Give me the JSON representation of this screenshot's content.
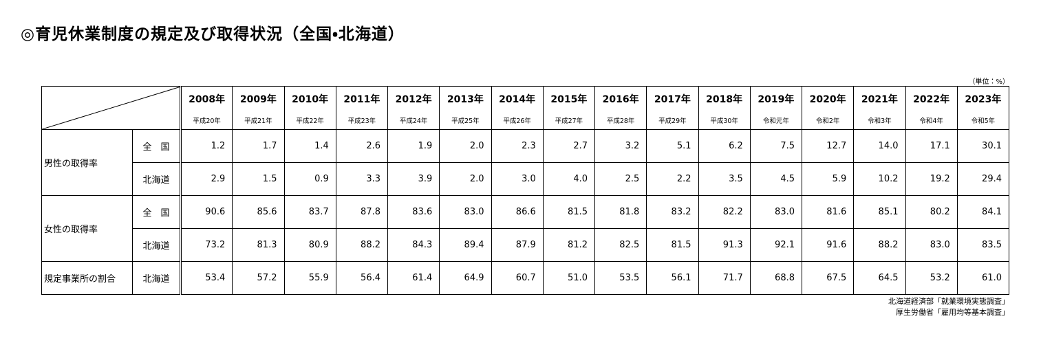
{
  "title": "◎育児休業制度の規定及び取得状況（全国・北海道）",
  "unit": "（単位：%）",
  "table": {
    "years": [
      {
        "year": "2008年",
        "era": "平成20年"
      },
      {
        "year": "2009年",
        "era": "平成21年"
      },
      {
        "year": "2010年",
        "era": "平成22年"
      },
      {
        "year": "2011年",
        "era": "平成23年"
      },
      {
        "year": "2012年",
        "era": "平成24年"
      },
      {
        "year": "2013年",
        "era": "平成25年"
      },
      {
        "year": "2014年",
        "era": "平成26年"
      },
      {
        "year": "2015年",
        "era": "平成27年"
      },
      {
        "year": "2016年",
        "era": "平成28年"
      },
      {
        "year": "2017年",
        "era": "平成29年"
      },
      {
        "year": "2018年",
        "era": "平成30年"
      },
      {
        "year": "2019年",
        "era": "令和元年"
      },
      {
        "year": "2020年",
        "era": "令和2年"
      },
      {
        "year": "2021年",
        "era": "令和3年"
      },
      {
        "year": "2022年",
        "era": "令和4年"
      },
      {
        "year": "2023年",
        "era": "令和5年"
      }
    ],
    "groups": [
      {
        "label": "男性の取得率",
        "rows": [
          {
            "region": "全　国",
            "values": [
              "1.2",
              "1.7",
              "1.4",
              "2.6",
              "1.9",
              "2.0",
              "2.3",
              "2.7",
              "3.2",
              "5.1",
              "6.2",
              "7.5",
              "12.7",
              "14.0",
              "17.1",
              "30.1"
            ]
          },
          {
            "region": "北海道",
            "values": [
              "2.9",
              "1.5",
              "0.9",
              "3.3",
              "3.9",
              "2.0",
              "3.0",
              "4.0",
              "2.5",
              "2.2",
              "3.5",
              "4.5",
              "5.9",
              "10.2",
              "19.2",
              "29.4"
            ]
          }
        ]
      },
      {
        "label": "女性の取得率",
        "rows": [
          {
            "region": "全　国",
            "values": [
              "90.6",
              "85.6",
              "83.7",
              "87.8",
              "83.6",
              "83.0",
              "86.6",
              "81.5",
              "81.8",
              "83.2",
              "82.2",
              "83.0",
              "81.6",
              "85.1",
              "80.2",
              "84.1"
            ]
          },
          {
            "region": "北海道",
            "values": [
              "73.2",
              "81.3",
              "80.9",
              "88.2",
              "84.3",
              "89.4",
              "87.9",
              "81.2",
              "82.5",
              "81.5",
              "91.3",
              "92.1",
              "91.6",
              "88.2",
              "83.0",
              "83.5"
            ]
          }
        ]
      },
      {
        "label": "規定事業所の割合",
        "rows": [
          {
            "region": "北海道",
            "values": [
              "53.4",
              "57.2",
              "55.9",
              "56.4",
              "61.4",
              "64.9",
              "60.7",
              "51.0",
              "53.5",
              "56.1",
              "71.7",
              "68.8",
              "67.5",
              "64.5",
              "53.2",
              "61.0"
            ]
          }
        ]
      }
    ]
  },
  "sources": [
    "北海道経済部「就業環境実態調査」",
    "厚生労働省「雇用均等基本調査」"
  ]
}
